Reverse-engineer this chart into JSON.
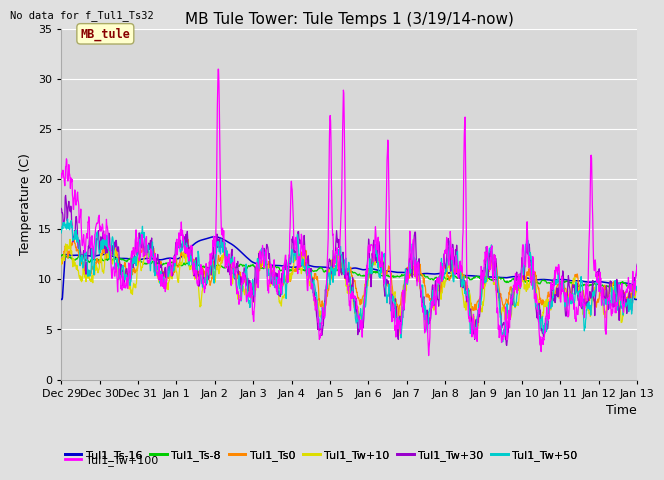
{
  "title": "MB Tule Tower: Tule Temps 1 (3/19/14-now)",
  "no_data_label": "No data for f_Tul1_Ts32",
  "xlabel": "Time",
  "ylabel": "Temperature (C)",
  "ylim": [
    0,
    35
  ],
  "yticks": [
    0,
    5,
    10,
    15,
    20,
    25,
    30,
    35
  ],
  "x_tick_labels": [
    "Dec 29",
    "Dec 30",
    "Dec 31",
    "Jan 1",
    "Jan 2",
    "Jan 3",
    "Jan 4",
    "Jan 5",
    "Jan 6",
    "Jan 7",
    "Jan 8",
    "Jan 9",
    "Jan 10",
    "Jan 11",
    "Jan 12",
    "Jan 13"
  ],
  "series_colors": {
    "Tul1_Ts-16": "#0000cc",
    "Tul1_Ts-8": "#00cc00",
    "Tul1_Ts0": "#ff8800",
    "Tul1_Tw+10": "#dddd00",
    "Tul1_Tw+30": "#9900cc",
    "Tul1_Tw+50": "#00cccc",
    "Tul1_Tw+100": "#ff00ff"
  },
  "background_color": "#e0e0e0",
  "plot_bg_color": "#d8d8d8",
  "grid_color": "#ffffff",
  "mb_tule_box_facecolor": "#ffffcc",
  "mb_tule_box_edgecolor": "#aaaa66",
  "mb_tule_text_color": "#880000",
  "title_fontsize": 11,
  "axis_fontsize": 9,
  "tick_fontsize": 8,
  "legend_fontsize": 8
}
